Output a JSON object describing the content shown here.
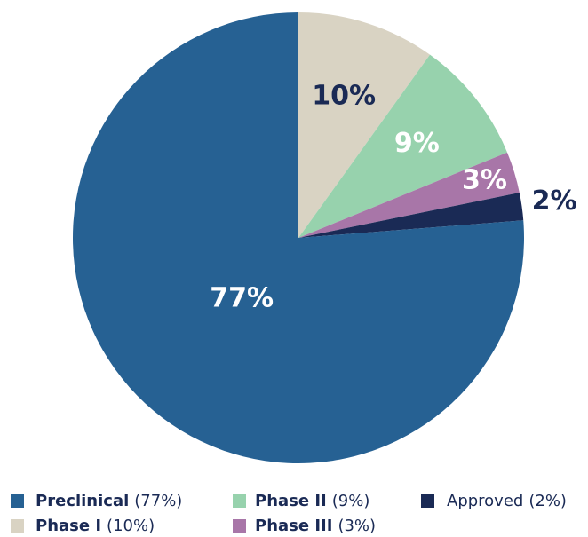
{
  "chart_data": {
    "type": "pie",
    "categories": [
      "Phase I",
      "Phase II",
      "Phase III",
      "Approved",
      "Preclinical"
    ],
    "values": [
      10,
      9,
      3,
      2,
      77
    ],
    "value_labels": [
      "10%",
      "9%",
      "3%",
      "2%",
      "77%"
    ],
    "colors": [
      "#d9d3c3",
      "#97d2ad",
      "#a876a8",
      "#1a2a55",
      "#266193"
    ],
    "label_colors": [
      "#1a2a55",
      "#ffffff",
      "#ffffff",
      "#1a2a55",
      "#ffffff"
    ],
    "legend_values": [
      "(10%)",
      "(9%)",
      "(3%)",
      "(2%)",
      "(77%)"
    ],
    "legend_bold": [
      true,
      true,
      true,
      false,
      true
    ]
  }
}
